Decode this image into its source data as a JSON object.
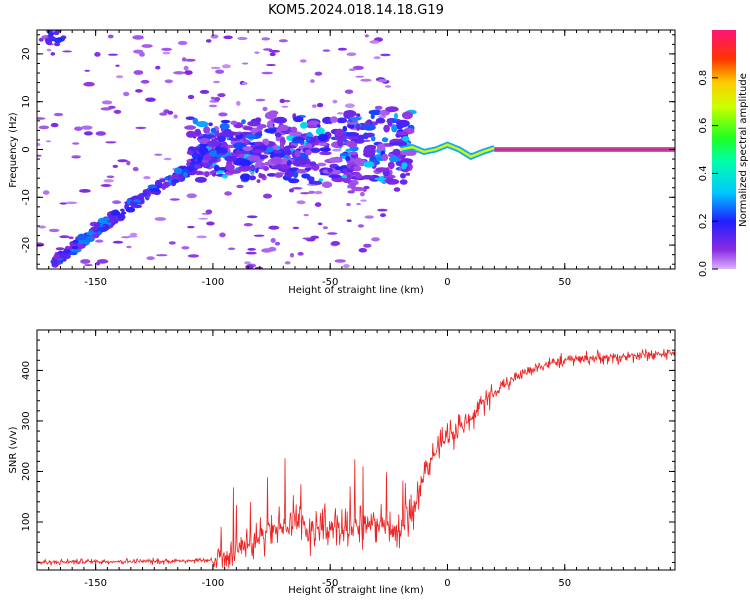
{
  "figure": {
    "title": "KOM5.2024.018.14.18.G19"
  },
  "chart_data": [
    {
      "type": "heatmap",
      "title": "KOM5.2024.018.14.18.G19",
      "xlabel": "Height of straight line (km)",
      "ylabel": "Frequency (Hz)",
      "xlim": [
        -175,
        97
      ],
      "ylim": [
        -25,
        25
      ],
      "xticks": [
        -150,
        -100,
        -50,
        0,
        50
      ],
      "yticks": [
        -20,
        -10,
        0,
        10,
        20
      ],
      "grid": false,
      "colorbar": {
        "label": "Normalized spectral amplitude",
        "range": [
          0,
          1
        ],
        "ticks": [
          0.0,
          0.2,
          0.4,
          0.6,
          0.8
        ],
        "colormap": "rainbow-purple-to-red"
      },
      "features": {
        "main_line": {
          "x_start": 20,
          "x_end": 97,
          "freq": 0,
          "amplitude": 1.0
        },
        "oscillating_track": {
          "x": [
            -20,
            -15,
            -10,
            -5,
            0,
            5,
            10,
            15,
            20
          ],
          "freq": [
            0,
            0.5,
            -0.5,
            0,
            1,
            0,
            -1.5,
            -0.5,
            0.3
          ]
        },
        "diagonal_trail": {
          "x": [
            -168,
            -150,
            -130,
            -110,
            -95
          ],
          "freq": [
            -24,
            -17,
            -10,
            -4,
            0
          ]
        }
      }
    },
    {
      "type": "line",
      "xlabel": "Height of straight line (km)",
      "ylabel": "SNR (v/v)",
      "xlim": [
        -175,
        97
      ],
      "ylim": [
        5,
        480
      ],
      "xticks": [
        -150,
        -100,
        -50,
        0,
        50
      ],
      "yticks": [
        100,
        200,
        300,
        400
      ],
      "grid": false,
      "series": [
        {
          "color": "#ee2222",
          "x": [
            -175,
            -150,
            -125,
            -100,
            -90,
            -80,
            -70,
            -60,
            -50,
            -40,
            -30,
            -20,
            -15,
            -10,
            -5,
            0,
            5,
            10,
            15,
            20,
            30,
            40,
            50,
            60,
            70,
            80,
            90,
            97
          ],
          "y": [
            20,
            22,
            22,
            25,
            40,
            70,
            90,
            90,
            85,
            90,
            95,
            85,
            110,
            200,
            240,
            270,
            290,
            300,
            340,
            355,
            390,
            410,
            420,
            425,
            425,
            430,
            432,
            435
          ]
        }
      ]
    }
  ]
}
